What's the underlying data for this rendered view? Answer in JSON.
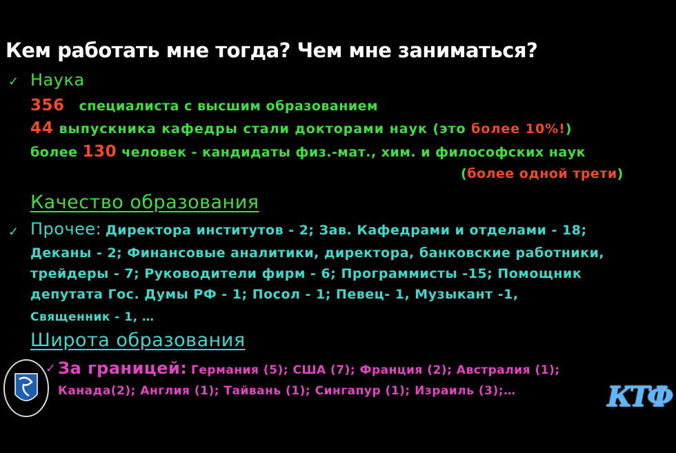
{
  "title": "Кем работать мне тогда? Чем мне заниматься?",
  "science": {
    "heading": "Наука",
    "line1": {
      "num": "356",
      "text": "специалиста с высшим образованием"
    },
    "line2": {
      "num": "44",
      "text": "выпускника кафедры стали докторами наук (это ",
      "highlight": "более 10%!",
      "end": ")"
    },
    "line3": {
      "pre": "более ",
      "num": "130",
      "text": " человек - кандидаты физ.-мат., хим. и философских наук"
    },
    "line4": {
      "open": "(",
      "text": "более одной трети",
      "close": ")"
    }
  },
  "quality_heading": "Качество образования",
  "other": {
    "label": "Прочее:",
    "lines": [
      "Директора институтов - 2; Зав. Кафедрами и отделами - 18;",
      "Деканы - 2; Финансовые аналитики, директора, банковские работники,",
      "трейдеры - 7; Руководители фирм - 6; Программисты -15; Помощник",
      "депутата Гос. Думы РФ - 1; Посол - 1; Певец- 1, Музыкант -1,",
      "Священник - 1, …"
    ]
  },
  "breadth_heading": "Широта образования",
  "abroad": {
    "label": "За границей:",
    "lines": [
      "Германия (5); США (7); Франция (2); Австралия (1);",
      "Канада(2); Англия (1); Тайвань (1); Сингапур (1); Израиль (3);…"
    ]
  },
  "logos": {
    "right": "КТФ",
    "left": "university-crest"
  },
  "colors": {
    "green": "#3ee03e",
    "red": "#f24a24",
    "cyan": "#3fd8cc",
    "magenta": "#e244c4",
    "title": "#ffffff"
  }
}
